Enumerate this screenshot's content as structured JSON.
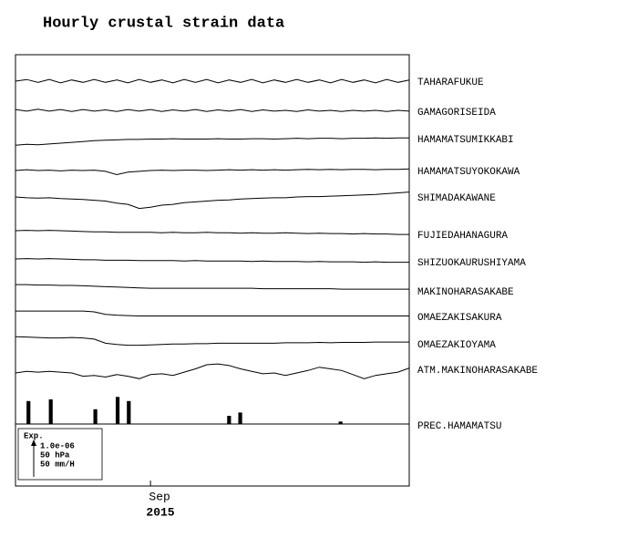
{
  "chart_data": {
    "type": "line",
    "title": "Hourly crustal strain data",
    "xticks": [
      {
        "value": 12,
        "label": "Sep"
      }
    ],
    "x_label": "2015",
    "scale_labels": [
      "Exp.",
      "1.0e-06",
      "50 hPa",
      "50 mm/H"
    ],
    "series": [
      {
        "name": "TAHARAFUKUE",
        "color": "#000000",
        "values": [
          0,
          0.04,
          -0.03,
          0.04,
          -0.04,
          0.03,
          -0.03,
          0.04,
          -0.03,
          0.03,
          -0.04,
          0.04,
          -0.03,
          0.03,
          -0.04,
          0.04,
          -0.03,
          0.04,
          -0.04,
          0.03,
          -0.03,
          0.04,
          -0.04,
          0.03,
          -0.03,
          0.04,
          -0.03,
          0.03,
          -0.04,
          0.04,
          -0.03,
          0.03,
          -0.04,
          0.04,
          -0.03,
          0.03
        ]
      },
      {
        "name": "GAMAGORISEIDA",
        "color": "#000000",
        "values": [
          0.02,
          -0.02,
          0.03,
          -0.02,
          0.02,
          -0.03,
          0.02,
          -0.02,
          0.01,
          -0.03,
          0.02,
          -0.02,
          0.02,
          -0.03,
          0.01,
          -0.02,
          0.02,
          -0.03,
          0.01,
          -0.02,
          0.02,
          -0.03,
          0.01,
          -0.02,
          0,
          -0.03,
          0.01,
          -0.02,
          0,
          -0.03,
          0,
          -0.02,
          0,
          -0.03,
          0,
          -0.02
        ]
      },
      {
        "name": "HAMAMATSUMIKKABI",
        "color": "#000000",
        "values": [
          -0.05,
          -0.03,
          -0.04,
          -0.02,
          0,
          0.02,
          0.04,
          0.06,
          0.07,
          0.08,
          0.09,
          0.09,
          0.1,
          0.1,
          0.11,
          0.1,
          0.1,
          0.1,
          0.11,
          0.1,
          0.1,
          0.11,
          0.11,
          0.1,
          0.11,
          0.12,
          0.11,
          0.12,
          0.12,
          0.11,
          0.12,
          0.12,
          0.13,
          0.12,
          0.13,
          0.13
        ]
      },
      {
        "name": "HAMAMATSUYOKOKAWA",
        "color": "#000000",
        "values": [
          0,
          0.02,
          0,
          0.01,
          -0.01,
          0.01,
          0,
          0.01,
          -0.02,
          -0.1,
          -0.04,
          -0.02,
          0,
          0.01,
          0,
          0.01,
          0.01,
          0,
          0.01,
          0.02,
          0.01,
          0.02,
          0.01,
          0.02,
          0.01,
          0.02,
          0.03,
          0.02,
          0.03,
          0.02,
          0.03,
          0.03,
          0.02,
          0.03,
          0.03,
          0.04
        ]
      },
      {
        "name": "SHIMADAKAWANE",
        "color": "#000000",
        "values": [
          0,
          -0.02,
          -0.03,
          -0.02,
          -0.04,
          -0.05,
          -0.06,
          -0.08,
          -0.1,
          -0.15,
          -0.18,
          -0.28,
          -0.25,
          -0.2,
          -0.18,
          -0.14,
          -0.12,
          -0.1,
          -0.08,
          -0.07,
          -0.05,
          -0.04,
          -0.03,
          -0.02,
          -0.02,
          0,
          0.01,
          0.01,
          0.02,
          0.03,
          0.04,
          0.05,
          0.06,
          0.08,
          0.1,
          0.12
        ]
      },
      {
        "name": "FUJIEDAHANAGURA",
        "color": "#000000",
        "values": [
          0,
          0.01,
          0,
          0.01,
          0,
          -0.01,
          -0.02,
          -0.03,
          -0.03,
          -0.04,
          -0.04,
          -0.04,
          -0.04,
          -0.05,
          -0.04,
          -0.05,
          -0.05,
          -0.04,
          -0.05,
          -0.05,
          -0.06,
          -0.05,
          -0.06,
          -0.06,
          -0.05,
          -0.06,
          -0.07,
          -0.06,
          -0.07,
          -0.07,
          -0.08,
          -0.07,
          -0.08,
          -0.08,
          -0.09,
          -0.09
        ]
      },
      {
        "name": "SHIZUOKAURUSHIYAMA",
        "color": "#000000",
        "values": [
          0,
          0.01,
          0,
          0.01,
          0,
          -0.01,
          -0.02,
          -0.02,
          -0.03,
          -0.03,
          -0.03,
          -0.04,
          -0.04,
          -0.04,
          -0.04,
          -0.05,
          -0.04,
          -0.05,
          -0.05,
          -0.05,
          -0.05,
          -0.06,
          -0.05,
          -0.06,
          -0.06,
          -0.06,
          -0.07,
          -0.06,
          -0.07,
          -0.07,
          -0.07,
          -0.08,
          -0.07,
          -0.08,
          -0.08,
          -0.08
        ]
      },
      {
        "name": "MAKINOHARASAKABE",
        "color": "#000000",
        "values": [
          0.02,
          0.02,
          0.01,
          0.01,
          0,
          0,
          -0.01,
          -0.02,
          -0.03,
          -0.04,
          -0.05,
          -0.06,
          -0.07,
          -0.07,
          -0.07,
          -0.07,
          -0.07,
          -0.07,
          -0.07,
          -0.07,
          -0.07,
          -0.07,
          -0.08,
          -0.08,
          -0.08,
          -0.08,
          -0.08,
          -0.08,
          -0.08,
          -0.09,
          -0.09,
          -0.09,
          -0.09,
          -0.09,
          -0.09,
          -0.09
        ]
      },
      {
        "name": "OMAEZAKISAKURA",
        "color": "#000000",
        "values": [
          0.02,
          0.02,
          0.02,
          0.02,
          0.02,
          0.02,
          0.02,
          0,
          -0.06,
          -0.08,
          -0.09,
          -0.1,
          -0.1,
          -0.1,
          -0.1,
          -0.1,
          -0.1,
          -0.1,
          -0.1,
          -0.1,
          -0.1,
          -0.1,
          -0.1,
          -0.1,
          -0.1,
          -0.1,
          -0.1,
          -0.1,
          -0.1,
          -0.1,
          -0.1,
          -0.1,
          -0.1,
          -0.1,
          -0.1,
          -0.1
        ]
      },
      {
        "name": "OMAEZAKIOYAMA",
        "color": "#000000",
        "values": [
          0.04,
          0.03,
          0.02,
          0.01,
          0.01,
          0.02,
          0.01,
          -0.02,
          -0.12,
          -0.15,
          -0.17,
          -0.17,
          -0.16,
          -0.15,
          -0.14,
          -0.14,
          -0.13,
          -0.13,
          -0.12,
          -0.12,
          -0.12,
          -0.12,
          -0.12,
          -0.12,
          -0.11,
          -0.11,
          -0.11,
          -0.1,
          -0.11,
          -0.1,
          -0.1,
          -0.1,
          -0.09,
          -0.09,
          -0.09,
          -0.09
        ]
      },
      {
        "name": "ATM.MAKINOHARASAKABE",
        "color": "#000000",
        "values": [
          0,
          0.04,
          0.02,
          0.04,
          0.02,
          0,
          -0.08,
          -0.06,
          -0.1,
          -0.04,
          -0.08,
          -0.14,
          -0.04,
          -0.02,
          -0.06,
          0.02,
          0.1,
          0.2,
          0.22,
          0.18,
          0.1,
          0.04,
          -0.02,
          0,
          -0.06,
          0,
          0.06,
          0.14,
          0.1,
          0.06,
          -0.04,
          -0.14,
          -0.06,
          -0.02,
          0.02,
          0.12
        ]
      },
      {
        "name": "PREC.HAMAMATSU",
        "type": "bar",
        "color": "#000000",
        "values": [
          0,
          28,
          0,
          30,
          0,
          0,
          0,
          18,
          0,
          33,
          28,
          0,
          0,
          0,
          0,
          0,
          0,
          0,
          0,
          10,
          14,
          0,
          0,
          0,
          0,
          0,
          0,
          0,
          0,
          3,
          0,
          0,
          0,
          0,
          0,
          0
        ]
      }
    ]
  }
}
